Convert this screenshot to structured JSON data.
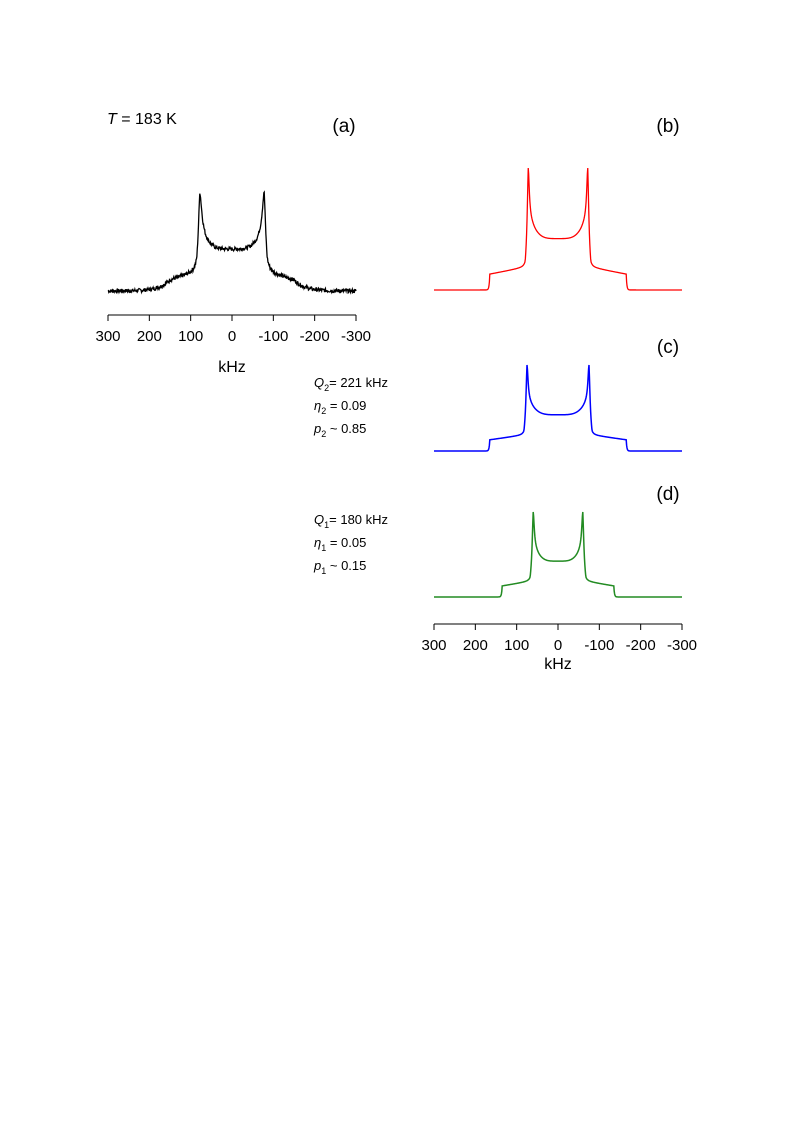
{
  "figure": {
    "temperature": {
      "symbol": "T",
      "rest": " = 183 K"
    },
    "annotations": {
      "c": [
        {
          "sym": "Q",
          "sub": "2",
          "rest": "= 221 kHz"
        },
        {
          "sym": "η",
          "sub": "2",
          "rest": " = 0.09"
        },
        {
          "sym": "p",
          "sub": "2",
          "rest": " ~ 0.85"
        }
      ],
      "d": [
        {
          "sym": "Q",
          "sub": "1",
          "rest": "= 180 kHz"
        },
        {
          "sym": "η",
          "sub": "1",
          "rest": " = 0.05"
        },
        {
          "sym": "p",
          "sub": "1",
          "rest": " ~ 0.15"
        }
      ]
    }
  },
  "chart_data": [
    {
      "panel": "(a)",
      "type": "line",
      "description_source": "experimental spectrum",
      "color": "#000000",
      "noisy": true,
      "xlabel": "kHz",
      "xlim": [
        300,
        -300
      ],
      "xticks": [
        300,
        200,
        100,
        0,
        -100,
        -200,
        -300
      ],
      "xtick_labels": [
        "300",
        "200",
        "100",
        "0",
        "-100",
        "-200",
        "-300"
      ],
      "params": {
        "horn": 78,
        "edge": 150,
        "ylim": [
          0,
          1
        ]
      },
      "x": [
        300,
        200,
        170,
        150,
        120,
        95,
        78,
        60,
        30,
        0,
        -30,
        -60,
        -78,
        -95,
        -120,
        -150,
        -170,
        -200,
        -300
      ],
      "y": [
        0.0,
        0.01,
        0.06,
        0.1,
        0.18,
        0.5,
        1.0,
        0.6,
        0.5,
        0.48,
        0.5,
        0.6,
        1.0,
        0.5,
        0.18,
        0.1,
        0.06,
        0.01,
        0.0
      ]
    },
    {
      "panel": "(b)",
      "type": "line",
      "color": "#ff0000",
      "noisy": false,
      "xlim": [
        300,
        -300
      ],
      "params": {
        "horn": 72,
        "edge": 165,
        "ylim": [
          0,
          1
        ]
      },
      "x": [
        300,
        170,
        165,
        130,
        100,
        80,
        72,
        50,
        0,
        -50,
        -72,
        -80,
        -100,
        -130,
        -165,
        -170,
        -300
      ],
      "y": [
        0.0,
        0.0,
        0.12,
        0.16,
        0.2,
        0.78,
        1.0,
        0.58,
        0.52,
        0.58,
        1.0,
        0.78,
        0.2,
        0.16,
        0.12,
        0.0,
        0.0
      ]
    },
    {
      "panel": "(c)",
      "type": "line",
      "color": "#0000ff",
      "noisy": false,
      "xlim": [
        300,
        -300
      ],
      "params": {
        "horn": 75,
        "edge": 165,
        "ylim": [
          0,
          1
        ]
      },
      "x": [
        300,
        170,
        165,
        130,
        100,
        80,
        75,
        50,
        0,
        -50,
        -75,
        -80,
        -100,
        -130,
        -165,
        -170,
        -300
      ],
      "y": [
        0.0,
        0.0,
        0.12,
        0.16,
        0.2,
        0.7,
        1.0,
        0.5,
        0.45,
        0.5,
        1.0,
        0.7,
        0.2,
        0.16,
        0.12,
        0.0,
        0.0
      ]
    },
    {
      "panel": "(d)",
      "type": "line",
      "color": "#228b22",
      "noisy": false,
      "xlabel": "kHz",
      "xlim": [
        300,
        -300
      ],
      "xticks": [
        300,
        200,
        100,
        0,
        -100,
        -200,
        -300
      ],
      "xtick_labels": [
        "300",
        "200",
        "100",
        "0",
        "-100",
        "-200",
        "-300"
      ],
      "params": {
        "horn": 60,
        "edge": 135,
        "ylim": [
          0,
          1
        ]
      },
      "x": [
        300,
        140,
        135,
        100,
        80,
        65,
        60,
        40,
        0,
        -40,
        -60,
        -65,
        -80,
        -100,
        -135,
        -140,
        -300
      ],
      "y": [
        0.0,
        0.0,
        0.12,
        0.16,
        0.2,
        0.7,
        1.0,
        0.45,
        0.4,
        0.45,
        1.0,
        0.7,
        0.2,
        0.16,
        0.12,
        0.0,
        0.0
      ]
    }
  ]
}
